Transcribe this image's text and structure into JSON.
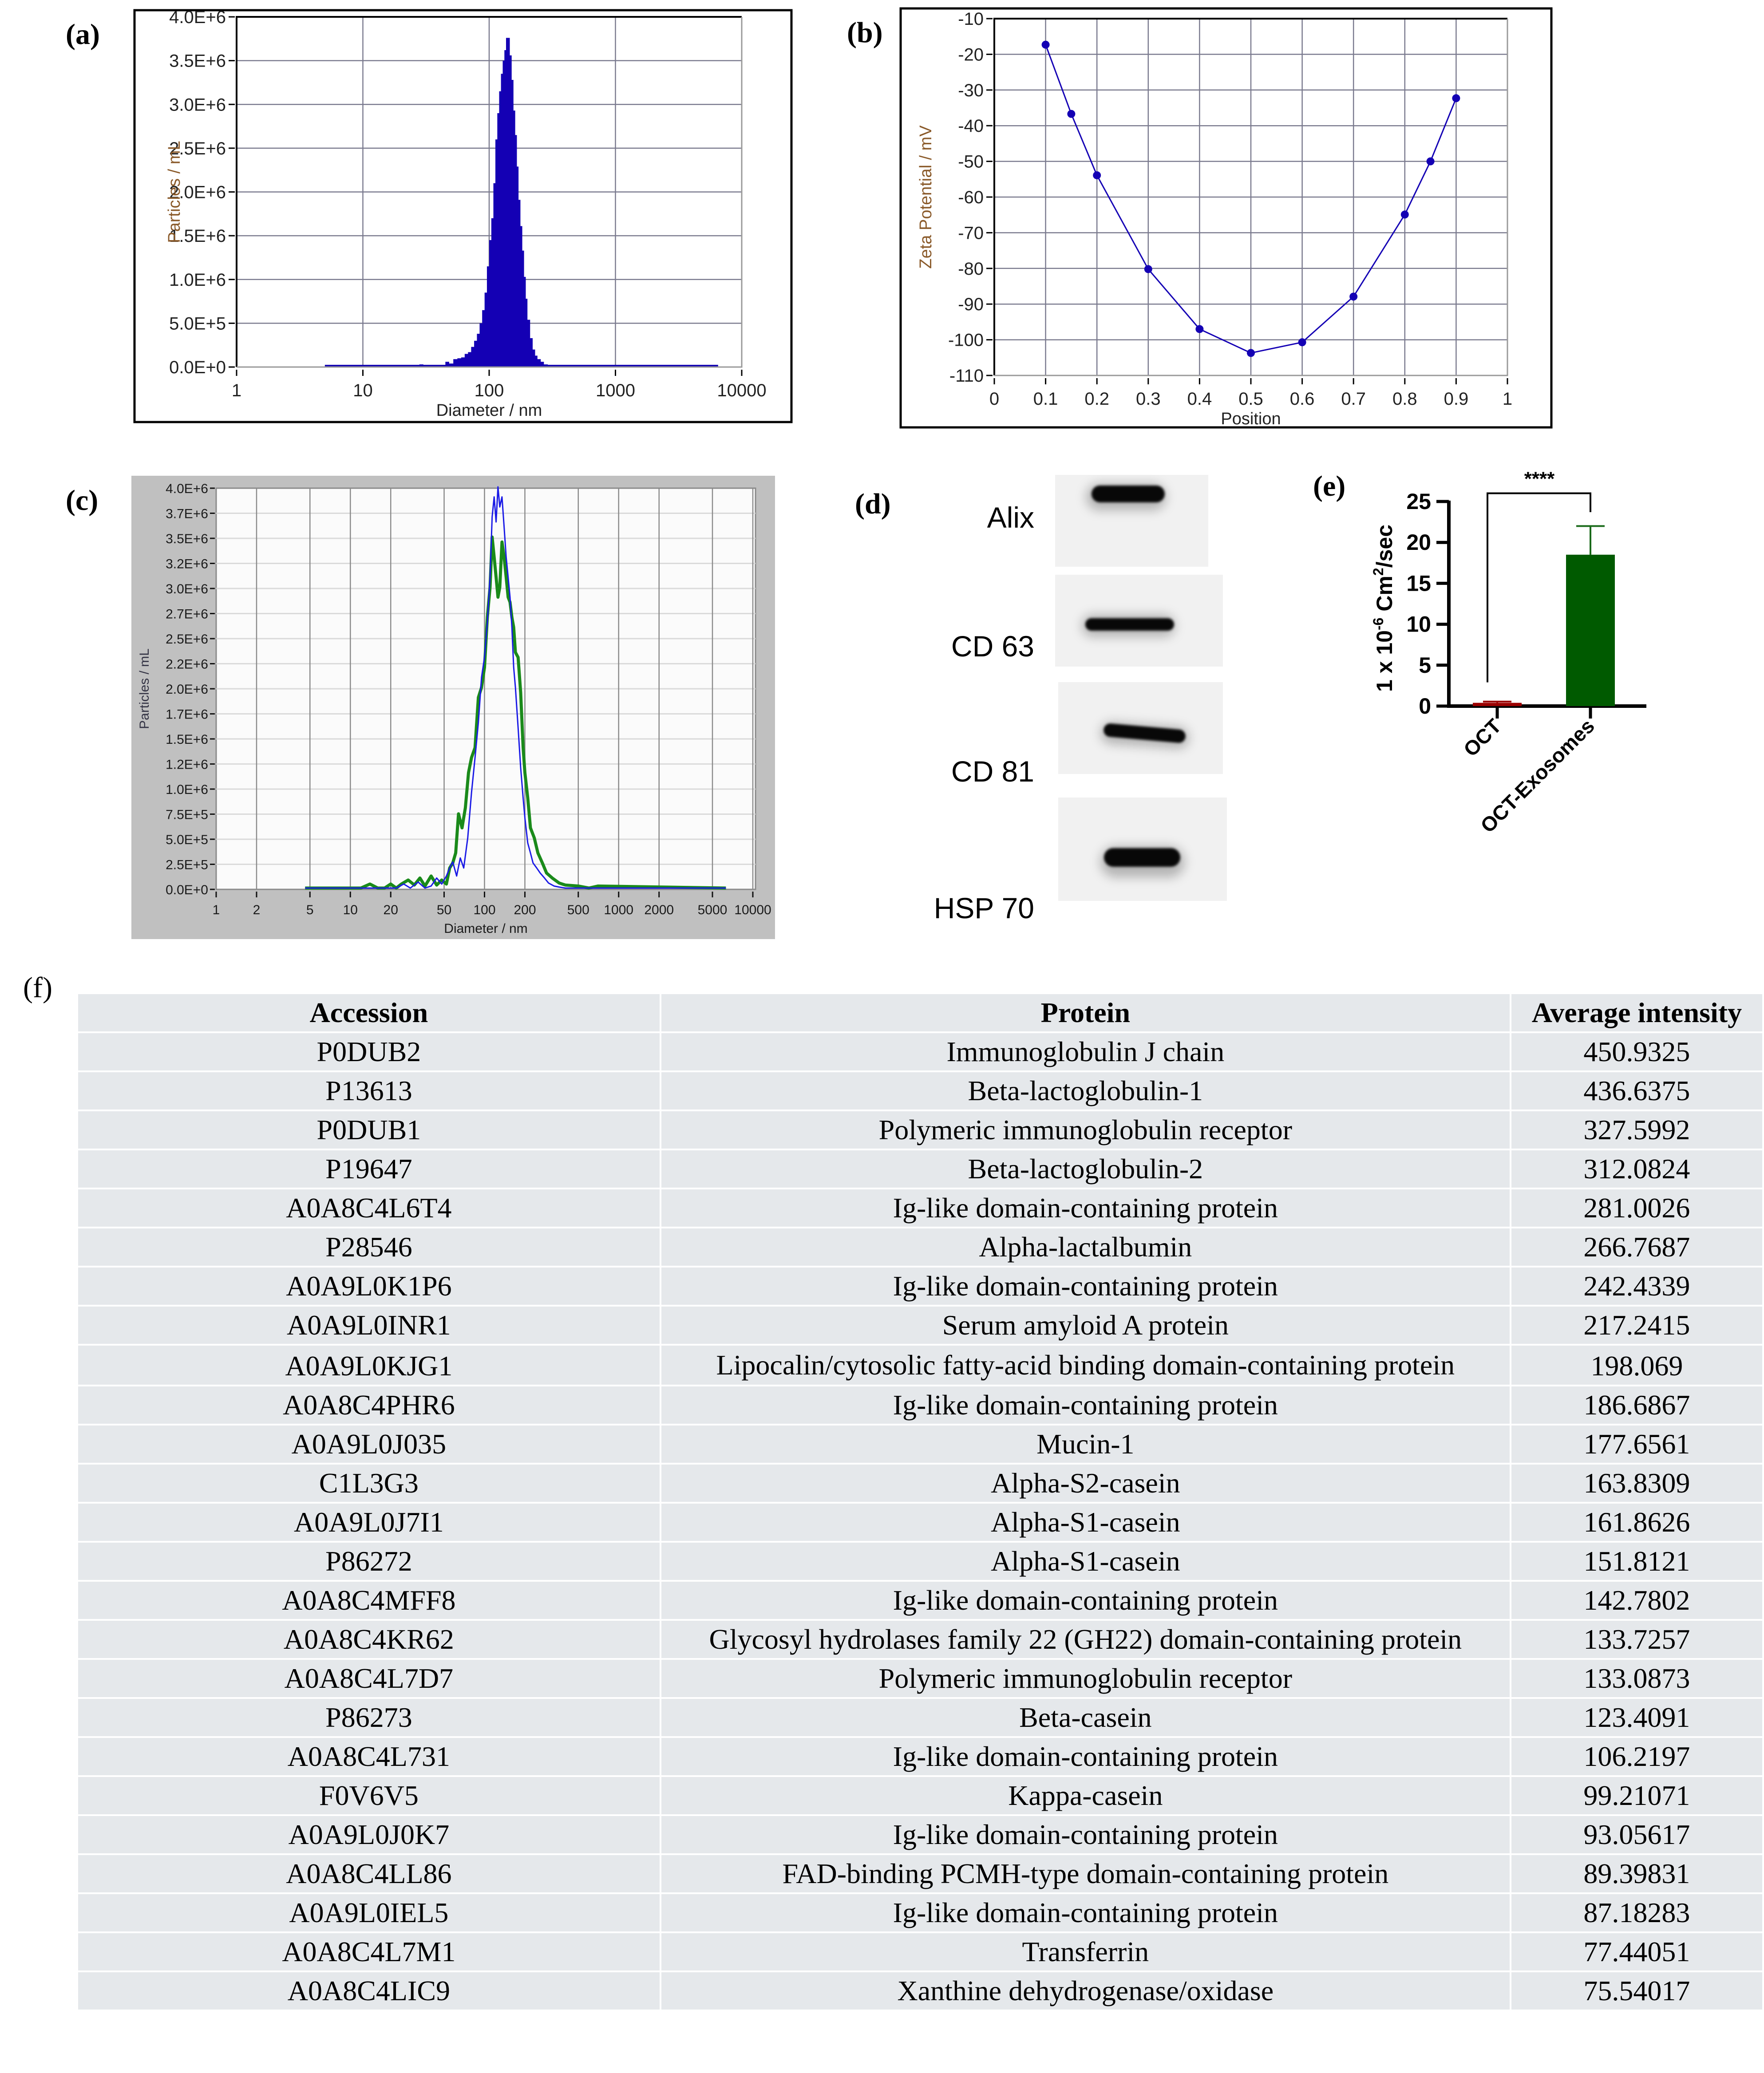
{
  "panels": {
    "a": {
      "label": "(a)"
    },
    "b": {
      "label": "(b)"
    },
    "c": {
      "label": "(c)"
    },
    "d": {
      "label": "(d)"
    },
    "e": {
      "label": "(e)"
    },
    "f": {
      "label": "(f)"
    }
  },
  "chart_data": [
    {
      "id": "a",
      "type": "bar",
      "title": "",
      "xlabel": "Diameter / nm",
      "ylabel": "Particles / mL",
      "xscale": "log",
      "xlim": [
        1,
        10000
      ],
      "ylim": [
        0,
        4000000
      ],
      "grid": true,
      "legend": "none",
      "color": "#1400b4",
      "xticks": [
        "1",
        "10",
        "100",
        "1000",
        "10000"
      ],
      "yticks": [
        "0.0E+0",
        "5.0E+5",
        "1.0E+6",
        "1.5E+6",
        "2.0E+6",
        "2.5E+6",
        "3.0E+6",
        "3.5E+6",
        "4.0E+6"
      ],
      "x": [
        5,
        25,
        28,
        30,
        35,
        40,
        45,
        48,
        52,
        56,
        60,
        64,
        68,
        72,
        76,
        80,
        84,
        88,
        92,
        96,
        100,
        104,
        108,
        112,
        116,
        120,
        124,
        128,
        132,
        136,
        140,
        145,
        150,
        155,
        160,
        165,
        170,
        176,
        182,
        188,
        194,
        200,
        210,
        220,
        230,
        240,
        255,
        270,
        290,
        320,
        360,
        400,
        500,
        560,
        640,
        700,
        6500
      ],
      "values": [
        0,
        0,
        30000,
        10000,
        0,
        20000,
        60000,
        40000,
        90000,
        100000,
        110000,
        150000,
        170000,
        230000,
        300000,
        380000,
        500000,
        650000,
        850000,
        1150000,
        1450000,
        1700000,
        2100000,
        2600000,
        2900000,
        3150000,
        3350000,
        3500000,
        3620000,
        3760000,
        3760000,
        3560000,
        3280000,
        2930000,
        2650000,
        2290000,
        1910000,
        1610000,
        1330000,
        1030000,
        780000,
        540000,
        330000,
        200000,
        130000,
        90000,
        60000,
        30000,
        10000,
        5000,
        0,
        0,
        20000,
        10000,
        20000,
        0,
        0
      ]
    },
    {
      "id": "b",
      "type": "line",
      "title": "",
      "xlabel": "Position",
      "ylabel": "Zeta Potential / mV",
      "xlim": [
        0,
        1
      ],
      "ylim": [
        -110,
        -10
      ],
      "grid": true,
      "legend": "none",
      "color": "#1400b4",
      "xticks": [
        "0",
        "0.1",
        "0.2",
        "0.3",
        "0.4",
        "0.5",
        "0.6",
        "0.7",
        "0.8",
        "0.9",
        "1"
      ],
      "yticks": [
        "-10",
        "-20",
        "-30",
        "-40",
        "-50",
        "-60",
        "-70",
        "-80",
        "-90",
        "-100",
        "-110"
      ],
      "x": [
        0.1,
        0.15,
        0.2,
        0.3,
        0.4,
        0.5,
        0.6,
        0.7,
        0.8,
        0.85,
        0.9
      ],
      "values": [
        -17.3,
        -36.7,
        -53.9,
        -80.2,
        -97.0,
        -103.7,
        -100.7,
        -87.9,
        -64.9,
        -50.0,
        -32.3
      ]
    },
    {
      "id": "c",
      "type": "line",
      "title": "",
      "xlabel": "Diameter / nm",
      "ylabel": "Particles / mL",
      "xscale": "log",
      "xlim": [
        1,
        10000
      ],
      "ylim": [
        0,
        4000000
      ],
      "grid": true,
      "legend": "none",
      "xticks": [
        "1",
        "2",
        "5",
        "10",
        "20",
        "50",
        "100",
        "200",
        "500",
        "1000",
        "2000",
        "5000",
        "10000"
      ],
      "xtick_values": [
        1,
        2,
        5,
        10,
        20,
        50,
        100,
        200,
        500,
        1000,
        2000,
        5000,
        10000
      ],
      "yticks": [
        "0.0E+0",
        "2.5E+5",
        "5.0E+5",
        "7.5E+5",
        "1.0E+6",
        "1.2E+6",
        "1.5E+6",
        "1.7E+6",
        "2.0E+6",
        "2.2E+6",
        "2.5E+6",
        "2.7E+6",
        "3.0E+6",
        "3.2E+6",
        "3.5E+6",
        "3.7E+6",
        "4.0E+6"
      ],
      "ytick_values": [
        0,
        250000,
        500000,
        750000,
        1000000,
        1250000,
        1500000,
        1750000,
        2000000,
        2250000,
        2500000,
        2750000,
        3000000,
        3250000,
        3500000,
        3750000,
        4000000
      ],
      "series": [
        {
          "name": "blue",
          "color": "#1a1ae6",
          "x": [
            4.6,
            22,
            25,
            28,
            32,
            36,
            40,
            44,
            48,
            52,
            55,
            58,
            62,
            66,
            70,
            75,
            80,
            85,
            90,
            95,
            100,
            105,
            110,
            114,
            118,
            122,
            126,
            130,
            135,
            140,
            145,
            150,
            155,
            160,
            165,
            170,
            178,
            186,
            194,
            200,
            210,
            220,
            230,
            245,
            260,
            280,
            300,
            330,
            360,
            400,
            6300
          ],
          "values": [
            0,
            0,
            40000,
            0,
            60000,
            0,
            20000,
            100000,
            40000,
            120000,
            200000,
            260000,
            120000,
            300000,
            200000,
            500000,
            950000,
            1300000,
            1650000,
            2100000,
            2300000,
            2650000,
            3100000,
            3700000,
            3900000,
            3650000,
            4000000,
            3800000,
            3900000,
            3600000,
            3300000,
            3100000,
            2900000,
            2600000,
            2200000,
            2000000,
            1600000,
            1200000,
            900000,
            700000,
            450000,
            350000,
            250000,
            200000,
            150000,
            100000,
            50000,
            20000,
            10000,
            0,
            0
          ]
        },
        {
          "name": "green",
          "color": "#1a8a1a",
          "x": [
            4.6,
            12,
            14,
            16,
            18,
            20,
            22,
            24,
            27,
            30,
            33,
            36,
            40,
            44,
            48,
            52,
            55,
            58,
            61,
            64,
            68,
            72,
            76,
            80,
            85,
            90,
            95,
            100,
            105,
            110,
            114,
            118,
            122,
            126,
            130,
            135,
            140,
            145,
            150,
            155,
            160,
            165,
            170,
            178,
            186,
            194,
            200,
            210,
            220,
            235,
            250,
            270,
            290,
            320,
            360,
            400,
            500,
            600,
            700,
            6300
          ],
          "values": [
            0,
            0,
            40000,
            0,
            0,
            40000,
            0,
            40000,
            80000,
            30000,
            100000,
            20000,
            120000,
            30000,
            80000,
            40000,
            200000,
            250000,
            350000,
            740000,
            600000,
            800000,
            1150000,
            1300000,
            1400000,
            1900000,
            2000000,
            2200000,
            2700000,
            3000000,
            3500000,
            3300000,
            3100000,
            2900000,
            3000000,
            3450000,
            3300000,
            3100000,
            2900000,
            2850000,
            2700000,
            2600000,
            2350000,
            2300000,
            1950000,
            1400000,
            1150000,
            900000,
            600000,
            500000,
            350000,
            250000,
            150000,
            100000,
            50000,
            30000,
            20000,
            0,
            20000,
            0
          ]
        }
      ]
    },
    {
      "id": "e",
      "type": "bar",
      "title": "",
      "xlabel": "",
      "ylabel": "1 x 10^-6 Cm^2/sec",
      "ylabel_parts": {
        "base": "1 x 10",
        "exp1": "-6",
        "mid": " Cm",
        "exp2": "2",
        "tail": "/sec"
      },
      "ylim": [
        0,
        25
      ],
      "grid": false,
      "legend": "none",
      "categories": [
        "OCT",
        "OCT-Exosomes"
      ],
      "values": [
        0.4,
        18.5
      ],
      "error_upper": [
        0.55,
        22.0
      ],
      "colors": [
        "#9b0000",
        "#005a00"
      ],
      "error_colors": [
        "#9b0000",
        "#1a6a1a"
      ],
      "yticks": [
        "0",
        "5",
        "10",
        "15",
        "20",
        "25"
      ],
      "ytick_values": [
        0,
        5,
        10,
        15,
        20,
        25
      ],
      "significance": {
        "label": "****",
        "left_leg_to": 2.9,
        "right_leg_to": 23.7,
        "bracket_at": 26.0
      }
    }
  ],
  "western_blot": {
    "rows": [
      {
        "label": "Alix"
      },
      {
        "label": "CD 63"
      },
      {
        "label": "CD 81"
      },
      {
        "label": "HSP 70"
      }
    ]
  },
  "table": {
    "headers": [
      "Accession",
      "Protein",
      "Average intensity"
    ],
    "rows": [
      {
        "accession": "P0DUB2",
        "protein": "Immunoglobulin J chain",
        "intensity": "450.9325"
      },
      {
        "accession": "P13613",
        "protein": "Beta-lactoglobulin-1",
        "intensity": "436.6375"
      },
      {
        "accession": "P0DUB1",
        "protein": "Polymeric immunoglobulin receptor",
        "intensity": "327.5992"
      },
      {
        "accession": "P19647",
        "protein": "Beta-lactoglobulin-2",
        "intensity": "312.0824"
      },
      {
        "accession": "A0A8C4L6T4",
        "protein": "Ig-like domain-containing protein",
        "intensity": "281.0026"
      },
      {
        "accession": "P28546",
        "protein": "Alpha-lactalbumin",
        "intensity": "266.7687"
      },
      {
        "accession": "A0A9L0K1P6",
        "protein": "Ig-like domain-containing protein",
        "intensity": "242.4339"
      },
      {
        "accession": "A0A9L0INR1",
        "protein": "Serum amyloid A protein",
        "intensity": "217.2415"
      },
      {
        "accession": "A0A9L0KJG1",
        "protein": "Lipocalin/cytosolic fatty-acid binding domain-containing protein",
        "intensity": "198.069"
      },
      {
        "accession": "A0A8C4PHR6",
        "protein": "Ig-like domain-containing protein",
        "intensity": "186.6867"
      },
      {
        "accession": "A0A9L0J035",
        "protein": "Mucin-1",
        "intensity": "177.6561"
      },
      {
        "accession": "C1L3G3",
        "protein": "Alpha-S2-casein",
        "intensity": "163.8309"
      },
      {
        "accession": "A0A9L0J7I1",
        "protein": "Alpha-S1-casein",
        "intensity": "161.8626"
      },
      {
        "accession": "P86272",
        "protein": "Alpha-S1-casein",
        "intensity": "151.8121"
      },
      {
        "accession": "A0A8C4MFF8",
        "protein": "Ig-like domain-containing protein",
        "intensity": "142.7802"
      },
      {
        "accession": "A0A8C4KR62",
        "protein": "Glycosyl hydrolases family 22 (GH22) domain-containing protein",
        "intensity": "133.7257"
      },
      {
        "accession": "A0A8C4L7D7",
        "protein": "Polymeric immunoglobulin receptor",
        "intensity": "133.0873"
      },
      {
        "accession": "P86273",
        "protein": "Beta-casein",
        "intensity": "123.4091"
      },
      {
        "accession": "A0A8C4L731",
        "protein": "Ig-like domain-containing protein",
        "intensity": "106.2197"
      },
      {
        "accession": "F0V6V5",
        "protein": "Kappa-casein",
        "intensity": "99.21071"
      },
      {
        "accession": "A0A9L0J0K7",
        "protein": "Ig-like domain-containing protein",
        "intensity": "93.05617"
      },
      {
        "accession": "A0A8C4LL86",
        "protein": "FAD-binding PCMH-type domain-containing protein",
        "intensity": "89.39831"
      },
      {
        "accession": "A0A9L0IEL5",
        "protein": "Ig-like domain-containing protein",
        "intensity": "87.18283"
      },
      {
        "accession": "A0A8C4L7M1",
        "protein": "Transferrin",
        "intensity": "77.44051"
      },
      {
        "accession": "A0A8C4LIC9",
        "protein": "Xanthine dehydrogenase/oxidase",
        "intensity": "75.54017"
      }
    ]
  }
}
